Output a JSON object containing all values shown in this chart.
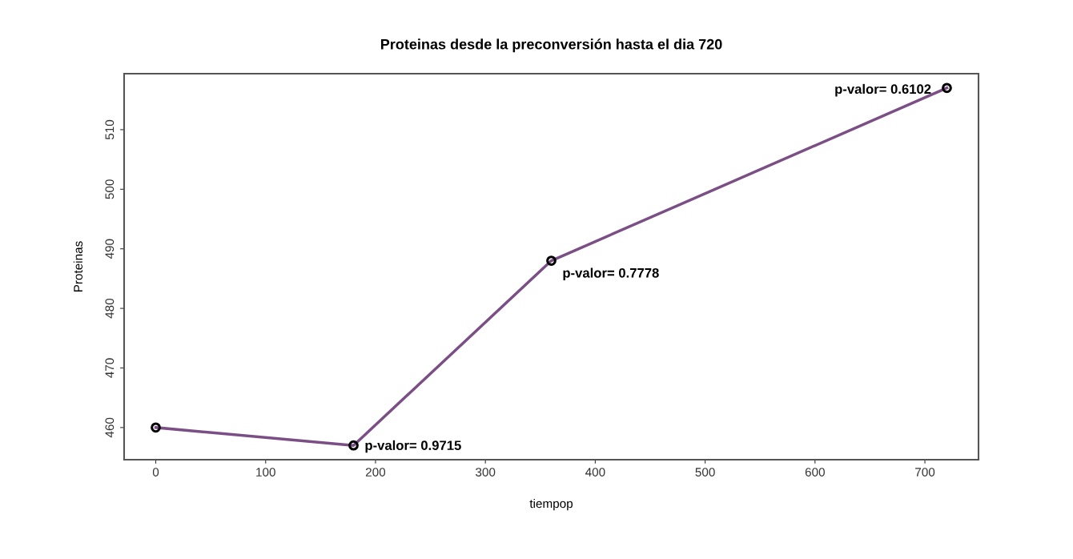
{
  "chart_data": {
    "type": "line",
    "title": "Proteinas desde la preconversión hasta el dia 720",
    "xlabel": "tiempop",
    "ylabel": "Proteinas",
    "x": [
      0,
      180,
      360,
      720
    ],
    "series": [
      {
        "color": "#7b4f86",
        "values": [
          460,
          457,
          488,
          517
        ]
      }
    ],
    "marker": "circle",
    "xlim": [
      -28.8,
      748.8
    ],
    "xticks": [
      0,
      100,
      200,
      300,
      400,
      500,
      600,
      700
    ],
    "ylim": [
      454.6,
      519.4
    ],
    "yticks": [
      460,
      470,
      480,
      490,
      500,
      510
    ],
    "annotations": [
      {
        "text": "p-valor= 0.9715",
        "x": 180,
        "y": 457
      },
      {
        "text": "p-valor= 0.7778",
        "x": 360,
        "y": 488
      },
      {
        "text": "p-valor= 0.6102",
        "x": 720,
        "y": 517
      }
    ]
  }
}
